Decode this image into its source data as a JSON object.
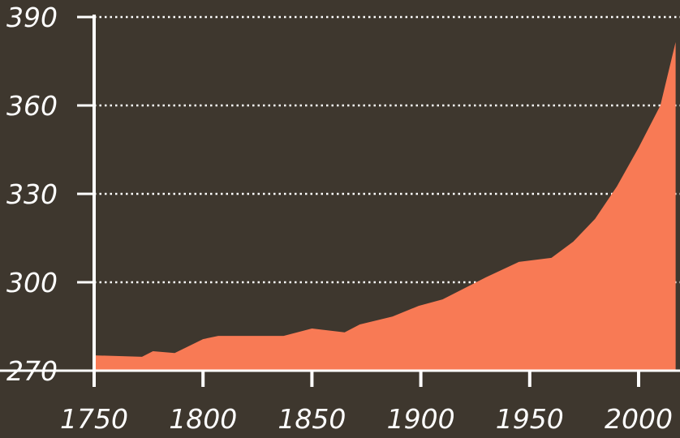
{
  "chart_data": {
    "type": "area",
    "title": "",
    "xlabel": "",
    "ylabel": "",
    "xlim": [
      1750,
      2017
    ],
    "ylim": [
      270,
      390
    ],
    "grid": true,
    "x_ticks": [
      "1750",
      "1800",
      "1850",
      "1900",
      "1950",
      "2000"
    ],
    "y_ticks": [
      "270",
      "300",
      "330",
      "360",
      "390"
    ],
    "colors": {
      "background": "#3e372e",
      "fill": "#f87a55",
      "axis": "#ffffff",
      "grid": "#ffffff"
    },
    "x": [
      1750,
      1772,
      1777,
      1787,
      1800,
      1807,
      1837,
      1850,
      1865,
      1872,
      1887,
      1899,
      1910,
      1930,
      1945,
      1960,
      1970,
      1980,
      1990,
      2000,
      2010,
      2017
    ],
    "values": [
      275.2,
      274.7,
      276.6,
      276.0,
      280.7,
      281.8,
      281.8,
      284.3,
      283.0,
      285.7,
      288.4,
      292.0,
      294.2,
      301.7,
      306.9,
      308.3,
      313.8,
      321.5,
      332.5,
      345.7,
      360.0,
      381.5
    ]
  }
}
